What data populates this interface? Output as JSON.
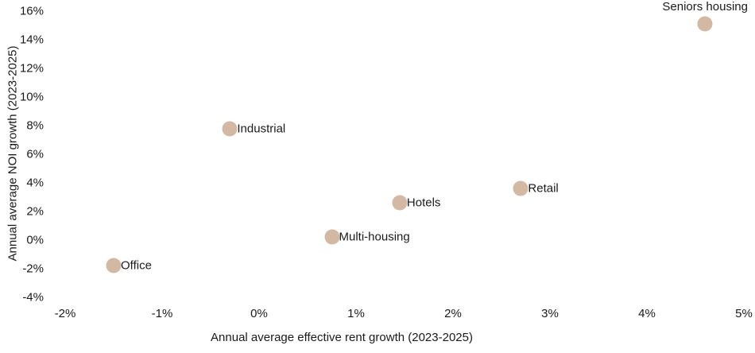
{
  "chart_data": {
    "type": "scatter",
    "title": "",
    "xlabel": "Annual average effective rent growth (2023-2025)",
    "ylabel": "Annual average NOI growth (2023-2025)",
    "xlim": [
      -2,
      5
    ],
    "ylim": [
      -4,
      16
    ],
    "x_ticks": [
      -2,
      -1,
      0,
      1,
      2,
      3,
      4,
      5
    ],
    "x_tick_labels": [
      "-2%",
      "-1%",
      "0%",
      "1%",
      "2%",
      "3%",
      "4%",
      "5%"
    ],
    "y_ticks": [
      16,
      14,
      12,
      10,
      8,
      6,
      4,
      2,
      0,
      -2,
      -4
    ],
    "y_tick_labels": [
      "16%",
      "14%",
      "12%",
      "10%",
      "8%",
      "6%",
      "4%",
      "2%",
      "0%",
      "-2%",
      "-4%"
    ],
    "grid": false,
    "legend": false,
    "point_color": "#d3b9a3",
    "points": [
      {
        "name": "Seniors housing",
        "x": 4.6,
        "y": 15.1,
        "label_position": "above"
      },
      {
        "name": "Industrial",
        "x": -0.3,
        "y": 7.8,
        "label_position": "right"
      },
      {
        "name": "Retail",
        "x": 2.7,
        "y": 3.6,
        "label_position": "right"
      },
      {
        "name": "Hotels",
        "x": 1.45,
        "y": 2.6,
        "label_position": "right"
      },
      {
        "name": "Multi-housing",
        "x": 0.75,
        "y": 0.2,
        "label_position": "right"
      },
      {
        "name": "Office",
        "x": -1.5,
        "y": -1.8,
        "label_position": "right"
      }
    ]
  }
}
